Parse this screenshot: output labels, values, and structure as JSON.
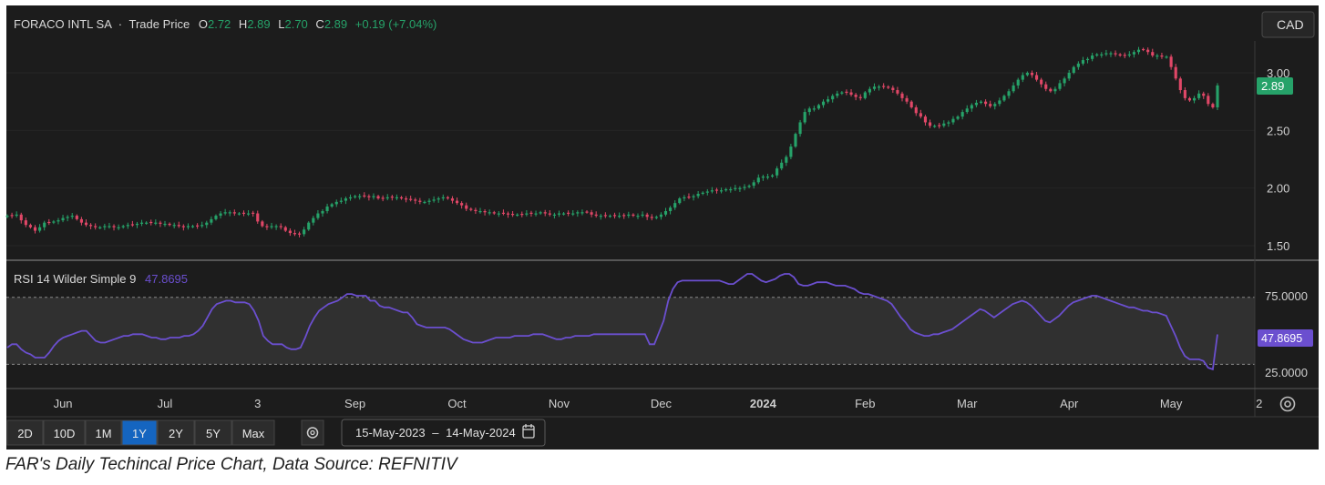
{
  "header": {
    "symbol": "FORACO INTL SA",
    "separator": "·",
    "price_type": "Trade Price",
    "open_label": "O",
    "open": "2.72",
    "high_label": "H",
    "high": "2.89",
    "low_label": "L",
    "low": "2.70",
    "close_label": "C",
    "close": "2.89",
    "change": "+0.19 (+7.04%)"
  },
  "currency_button": "CAD",
  "last_price_tag": "2.89",
  "rsi": {
    "label": "RSI 14 Wilder Simple 9",
    "value": "47.8695",
    "tag": "47.8695",
    "ticks": [
      "75.0000",
      "25.0000"
    ],
    "upper_band": 70,
    "lower_band": 30
  },
  "toolbar": {
    "ranges": [
      "2D",
      "10D",
      "1M",
      "1Y",
      "2Y",
      "5Y",
      "Max"
    ],
    "active_range": "1Y",
    "date_start": "15-May-2023",
    "date_sep": "–",
    "date_end": "14-May-2024"
  },
  "caption": "FAR's Daily Techincal Price Chart, Data Source: REFNITIV",
  "colors": {
    "background": "#1c1c1c",
    "up": "#26a269",
    "down": "#e04767",
    "rsi_line": "#6b4fcf",
    "last_tag": "#26a269",
    "rsi_tag": "#6b4fcf",
    "active_button": "#1565c0"
  },
  "chart_data": {
    "type": "candlestick",
    "price_axis": {
      "ticks": [
        "3.00",
        "2.50",
        "2.00",
        "1.50"
      ],
      "range": [
        1.4,
        3.25
      ]
    },
    "time_axis": {
      "labels": [
        "Jun",
        "Jul",
        "3",
        "Sep",
        "Oct",
        "Nov",
        "Dec",
        "2024",
        "Feb",
        "Mar",
        "Apr",
        "May",
        "2"
      ],
      "label_index": [
        12,
        34,
        54,
        75,
        97,
        119,
        141,
        163,
        185,
        207,
        229,
        251,
        270
      ]
    },
    "close": [
      1.76,
      1.76,
      1.77,
      1.72,
      1.68,
      1.66,
      1.63,
      1.66,
      1.7,
      1.7,
      1.71,
      1.72,
      1.74,
      1.75,
      1.76,
      1.73,
      1.7,
      1.68,
      1.67,
      1.66,
      1.66,
      1.67,
      1.67,
      1.66,
      1.66,
      1.67,
      1.68,
      1.68,
      1.69,
      1.7,
      1.7,
      1.7,
      1.7,
      1.69,
      1.69,
      1.68,
      1.68,
      1.67,
      1.66,
      1.67,
      1.67,
      1.67,
      1.68,
      1.7,
      1.73,
      1.76,
      1.78,
      1.79,
      1.79,
      1.78,
      1.78,
      1.78,
      1.78,
      1.78,
      1.71,
      1.67,
      1.66,
      1.67,
      1.67,
      1.66,
      1.63,
      1.61,
      1.6,
      1.6,
      1.64,
      1.7,
      1.74,
      1.78,
      1.8,
      1.84,
      1.86,
      1.88,
      1.89,
      1.91,
      1.92,
      1.93,
      1.93,
      1.93,
      1.92,
      1.93,
      1.91,
      1.91,
      1.92,
      1.92,
      1.92,
      1.91,
      1.9,
      1.9,
      1.89,
      1.88,
      1.88,
      1.89,
      1.9,
      1.91,
      1.92,
      1.91,
      1.89,
      1.87,
      1.85,
      1.82,
      1.81,
      1.8,
      1.8,
      1.79,
      1.79,
      1.78,
      1.78,
      1.78,
      1.77,
      1.77,
      1.77,
      1.77,
      1.78,
      1.78,
      1.78,
      1.79,
      1.78,
      1.77,
      1.77,
      1.78,
      1.78,
      1.78,
      1.78,
      1.79,
      1.79,
      1.79,
      1.77,
      1.76,
      1.76,
      1.76,
      1.76,
      1.76,
      1.76,
      1.76,
      1.77,
      1.76,
      1.76,
      1.77,
      1.75,
      1.74,
      1.75,
      1.77,
      1.8,
      1.83,
      1.87,
      1.91,
      1.92,
      1.92,
      1.93,
      1.95,
      1.96,
      1.97,
      1.98,
      1.98,
      1.98,
      1.99,
      1.99,
      2.0,
      2.0,
      2.01,
      2.02,
      2.05,
      2.09,
      2.1,
      2.1,
      2.11,
      2.17,
      2.22,
      2.27,
      2.36,
      2.47,
      2.57,
      2.66,
      2.69,
      2.69,
      2.72,
      2.75,
      2.77,
      2.8,
      2.82,
      2.83,
      2.83,
      2.81,
      2.79,
      2.78,
      2.83,
      2.86,
      2.88,
      2.88,
      2.88,
      2.87,
      2.85,
      2.82,
      2.78,
      2.75,
      2.7,
      2.65,
      2.62,
      2.57,
      2.54,
      2.54,
      2.54,
      2.56,
      2.57,
      2.6,
      2.62,
      2.66,
      2.69,
      2.72,
      2.74,
      2.75,
      2.73,
      2.71,
      2.73,
      2.76,
      2.8,
      2.84,
      2.89,
      2.94,
      2.98,
      3.0,
      2.98,
      2.94,
      2.9,
      2.86,
      2.84,
      2.86,
      2.91,
      2.95,
      3.0,
      3.05,
      3.08,
      3.11,
      3.12,
      3.15,
      3.16,
      3.16,
      3.17,
      3.17,
      3.16,
      3.15,
      3.15,
      3.16,
      3.18,
      3.2,
      3.2,
      3.18,
      3.15,
      3.15,
      3.14,
      3.14,
      3.05,
      2.95,
      2.85,
      2.78,
      2.76,
      2.78,
      2.82,
      2.8,
      2.73,
      2.7,
      2.89
    ],
    "rsi_series": {
      "name": "RSI 14 Wilder Simple 9",
      "range": [
        15,
        90
      ],
      "values": [
        40,
        42,
        42,
        39,
        37,
        36,
        34,
        34,
        34,
        37,
        41,
        44,
        46,
        47,
        48,
        49,
        50,
        50,
        47,
        44,
        43,
        43,
        44,
        45,
        46,
        47,
        47,
        48,
        48,
        48,
        47,
        46,
        46,
        45,
        45,
        46,
        46,
        46,
        47,
        47,
        48,
        50,
        53,
        58,
        63,
        66,
        67,
        68,
        68,
        67,
        67,
        67,
        66,
        62,
        56,
        47,
        44,
        42,
        42,
        42,
        40,
        39,
        39,
        40,
        46,
        53,
        58,
        62,
        64,
        66,
        67,
        68,
        70,
        72,
        72,
        71,
        71,
        71,
        68,
        68,
        65,
        64,
        64,
        63,
        62,
        61,
        61,
        58,
        54,
        53,
        52,
        52,
        52,
        52,
        52,
        51,
        49,
        47,
        45,
        44,
        43,
        43,
        43,
        44,
        45,
        46,
        46,
        46,
        46,
        47,
        47,
        47,
        47,
        48,
        48,
        48,
        47,
        46,
        45,
        45,
        46,
        46,
        47,
        47,
        47,
        47,
        48,
        48,
        48,
        48,
        48,
        48,
        48,
        48,
        48,
        48,
        48,
        48,
        42,
        42,
        49,
        56,
        68,
        75,
        79,
        80,
        80,
        80,
        80,
        80,
        80,
        80,
        80,
        80,
        79,
        78,
        78,
        80,
        82,
        84,
        84,
        82,
        80,
        79,
        80,
        81,
        83,
        84,
        84,
        82,
        78,
        77,
        77,
        78,
        79,
        79,
        79,
        78,
        77,
        77,
        77,
        76,
        75,
        73,
        72,
        72,
        71,
        70,
        69,
        68,
        66,
        62,
        58,
        55,
        51,
        49,
        48,
        47,
        47,
        48,
        48,
        49,
        50,
        51,
        53,
        55,
        57,
        59,
        61,
        63,
        62,
        60,
        58,
        60,
        62,
        64,
        66,
        67,
        68,
        67,
        65,
        62,
        59,
        56,
        55,
        57,
        59,
        62,
        65,
        67,
        68,
        69,
        70,
        71,
        71,
        70,
        69,
        68,
        67,
        66,
        65,
        64,
        64,
        63,
        62,
        62,
        61,
        61,
        60,
        59,
        53,
        47,
        40,
        35,
        33,
        33,
        33,
        32,
        28,
        27,
        47.87
      ]
    }
  }
}
